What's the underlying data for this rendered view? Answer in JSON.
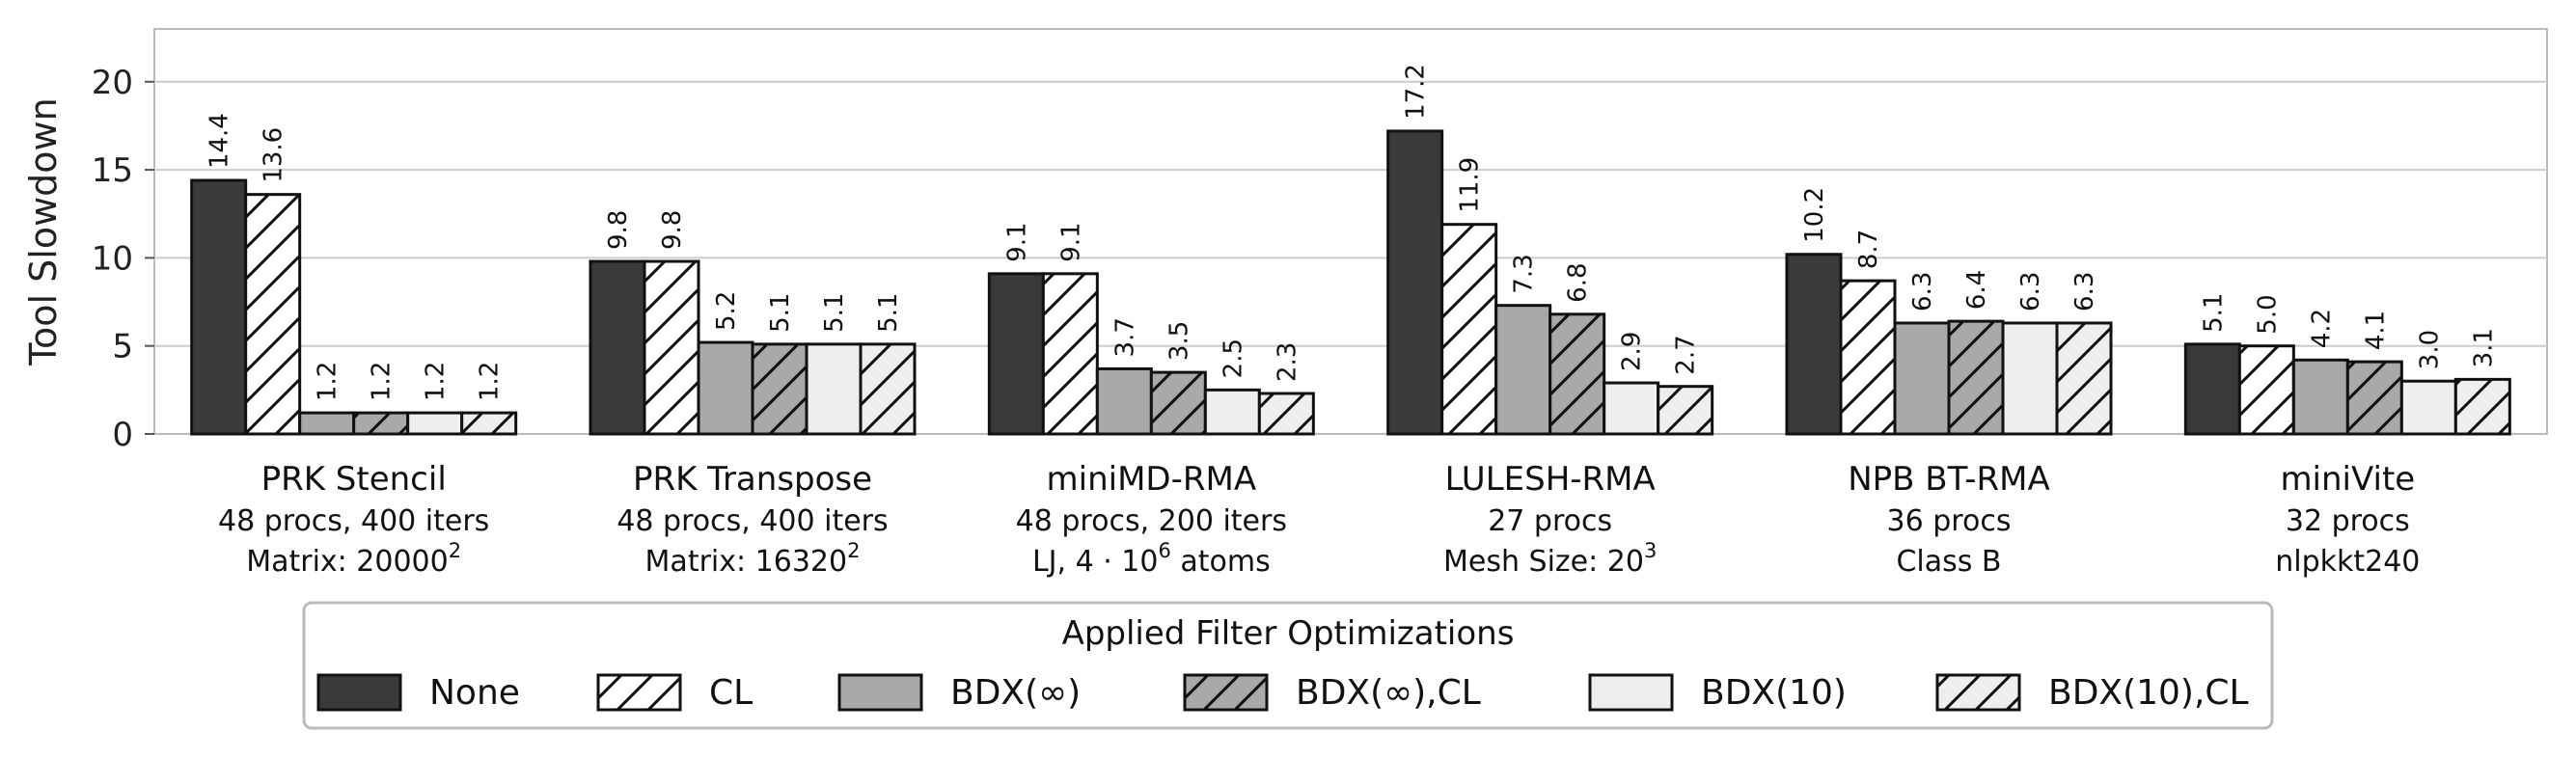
{
  "chart_data": {
    "type": "bar",
    "ylabel": "Tool Slowdown",
    "ylim": [
      0,
      23
    ],
    "yticks": [
      0,
      5,
      10,
      15,
      20
    ],
    "grid": true,
    "legend_placement": "bottom",
    "legend_title": "Applied Filter Optimizations",
    "categories": [
      {
        "name": "PRK Stencil",
        "line2": "48 procs, 400 iters",
        "line3": "Matrix: 20000",
        "line3_sup": "2"
      },
      {
        "name": "PRK Transpose",
        "line2": "48 procs, 400 iters",
        "line3": "Matrix: 16320",
        "line3_sup": "2"
      },
      {
        "name": "miniMD-RMA",
        "line2": "48 procs, 200 iters",
        "line3": "LJ, 4 · 10",
        "line3_sup": "6",
        "line3_after": " atoms"
      },
      {
        "name": "LULESH-RMA",
        "line2": "27 procs",
        "line3": "Mesh Size: 20",
        "line3_sup": "3"
      },
      {
        "name": "NPB BT-RMA",
        "line2": "36 procs",
        "line3": "Class B"
      },
      {
        "name": "miniVite",
        "line2": "32 procs",
        "line3": "nlpkkt240"
      }
    ],
    "series": [
      {
        "name": "None",
        "fill": "#3a3a3a",
        "hatch": false,
        "values": [
          14.4,
          9.8,
          9.1,
          17.2,
          10.2,
          5.1
        ],
        "labels": [
          "14.4",
          "9.8",
          "9.1",
          "17.2",
          "10.2",
          "5.1"
        ]
      },
      {
        "name": "CL",
        "fill": "#ffffff",
        "hatch": true,
        "values": [
          13.6,
          9.8,
          9.1,
          11.9,
          8.7,
          5.0
        ],
        "labels": [
          "13.6",
          "9.8",
          "9.1",
          "11.9",
          "8.7",
          "5.0"
        ]
      },
      {
        "name": "BDX(∞)",
        "fill": "#a9a9a9",
        "hatch": false,
        "values": [
          1.2,
          5.2,
          3.7,
          7.3,
          6.3,
          4.2
        ],
        "labels": [
          "1.2",
          "5.2",
          "3.7",
          "7.3",
          "6.3",
          "4.2"
        ]
      },
      {
        "name": "BDX(∞),CL",
        "fill": "#a9a9a9",
        "hatch": true,
        "values": [
          1.2,
          5.1,
          3.5,
          6.8,
          6.4,
          4.1
        ],
        "labels": [
          "1.2",
          "5.1",
          "3.5",
          "6.8",
          "6.4",
          "4.1"
        ]
      },
      {
        "name": "BDX(10)",
        "fill": "#eeeeee",
        "hatch": false,
        "values": [
          1.2,
          5.1,
          2.5,
          2.9,
          6.3,
          3.0
        ],
        "labels": [
          "1.2",
          "5.1",
          "2.5",
          "2.9",
          "6.3",
          "3.0"
        ]
      },
      {
        "name": "BDX(10),CL",
        "fill": "#eeeeee",
        "hatch": true,
        "values": [
          1.2,
          5.1,
          2.3,
          2.7,
          6.3,
          3.1
        ],
        "labels": [
          "1.2",
          "5.1",
          "2.3",
          "2.7",
          "6.3",
          "3.1"
        ]
      }
    ]
  }
}
